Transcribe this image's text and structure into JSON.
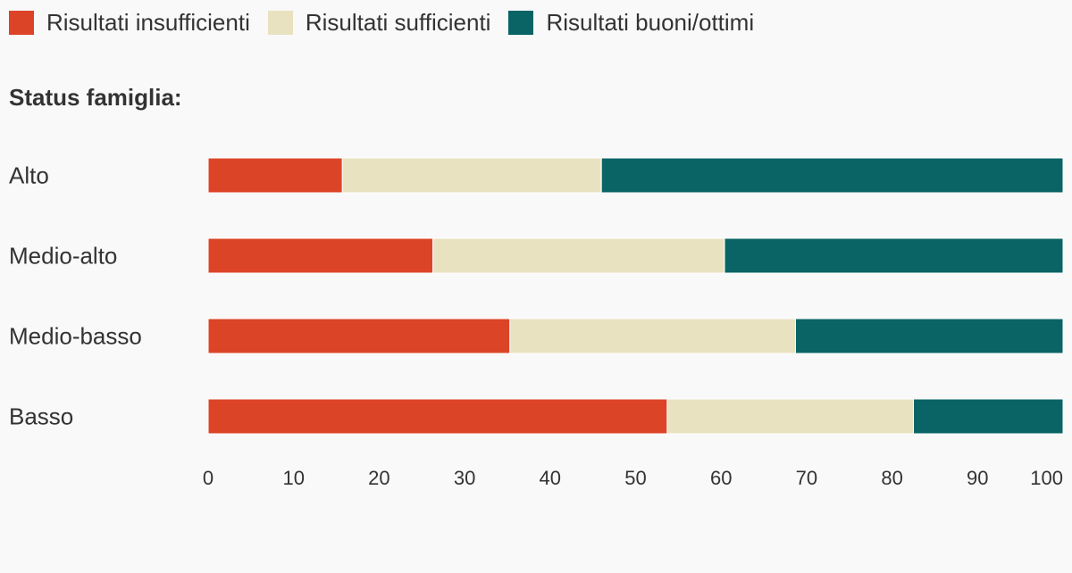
{
  "legend": [
    {
      "label": "Risultati insufficienti",
      "color": "#dc4427"
    },
    {
      "label": "Risultati sufficienti",
      "color": "#e9e2c0"
    },
    {
      "label": "Risultati buoni/ottimi",
      "color": "#0a6466"
    }
  ],
  "group_title": "Status famiglia:",
  "chart_data": {
    "type": "bar",
    "orientation": "horizontal",
    "stacked": true,
    "categories": [
      "Alto",
      "Medio-alto",
      "Medio-basso",
      "Basso"
    ],
    "series": [
      {
        "name": "Risultati insufficienti",
        "color": "#dc4427",
        "values": [
          15.7,
          26.3,
          35.3,
          53.7
        ]
      },
      {
        "name": "Risultati sufficienti",
        "color": "#e9e2c0",
        "values": [
          30.3,
          34.1,
          33.4,
          28.8
        ]
      },
      {
        "name": "Risultati buoni/ottimi",
        "color": "#0a6466",
        "values": [
          54.0,
          39.6,
          31.3,
          17.5
        ]
      }
    ],
    "xlim": [
      0,
      100
    ],
    "xticks": [
      "0",
      "10",
      "20",
      "30",
      "40",
      "50",
      "60",
      "70",
      "80",
      "90",
      "100"
    ],
    "grid": false,
    "legend_position": "top-left"
  }
}
